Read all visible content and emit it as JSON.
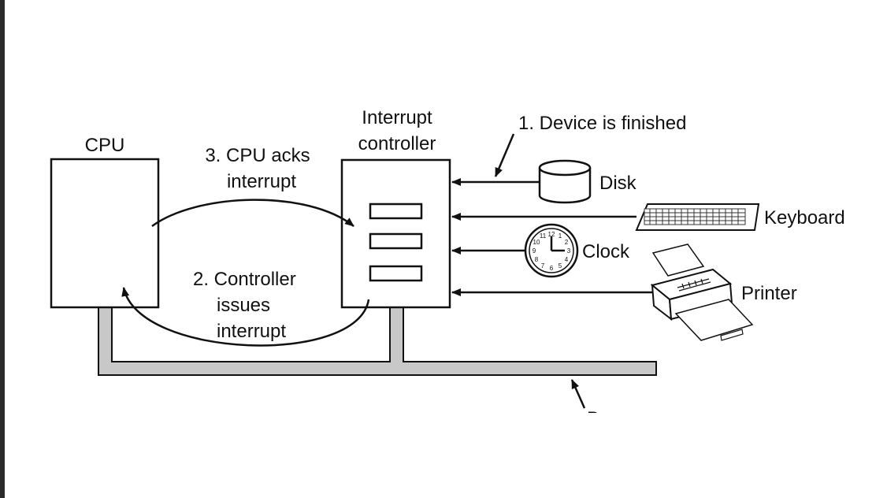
{
  "labels": {
    "cpu": "CPU",
    "controller_line1": "Interrupt",
    "controller_line2": "controller",
    "step1": "1. Device is finished",
    "step3_line1": "3. CPU acks",
    "step3_line2": "interrupt",
    "step2_line1": "2. Controller",
    "step2_line2": "issues",
    "step2_line3": "interrupt",
    "disk": "Disk",
    "keyboard": "Keyboard",
    "clock": "Clock",
    "printer": "Printer",
    "bus": "Bus"
  },
  "clock_face": {
    "numbers": [
      "12",
      "1",
      "2",
      "3",
      "4",
      "5",
      "6",
      "7",
      "8",
      "9",
      "10",
      "11"
    ]
  },
  "colors": {
    "line": "#111111",
    "bus_fill": "#c8c8c8",
    "frame_edge": "#2b2b2b"
  }
}
